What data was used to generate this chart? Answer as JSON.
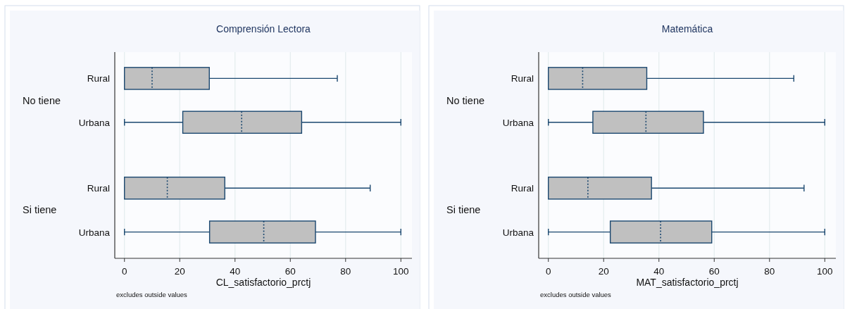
{
  "chart_data": [
    {
      "type": "box",
      "title": "Comprensión Lectora",
      "xlabel": "CL_satisfactorio_prctj",
      "annotations": [
        "No tiene",
        "Si tiene",
        "excludes outside values"
      ],
      "orientation": "horizontal",
      "categories": [
        "Rural",
        "Urbana",
        "Rural",
        "Urbana"
      ],
      "series": [
        {
          "color": "#c0c0c0",
          "boxes": [
            {
              "low": 0,
              "q1": 0,
              "median": 10,
              "q3": 30.7,
              "high": 77
            },
            {
              "low": 0,
              "q1": 21.1,
              "median": 42.4,
              "q3": 64.1,
              "high": 100
            },
            null,
            null
          ]
        },
        {
          "color": "#c0c0c0",
          "boxes": [
            null,
            null,
            {
              "low": 0,
              "q1": 0,
              "median": 15.5,
              "q3": 36.3,
              "high": 88.9
            },
            {
              "low": 0,
              "q1": 30.8,
              "median": 50.4,
              "q3": 69.1,
              "high": 100
            }
          ]
        }
      ],
      "xlim": [
        -3.5,
        104
      ],
      "xticks": [
        0,
        20,
        40,
        60,
        80,
        100
      ],
      "grid": "x"
    },
    {
      "type": "box",
      "title": "Matemática",
      "xlabel": "MAT_satisfactorio_prctj",
      "annotations": [
        "No tiene",
        "Si tiene",
        "excludes outside values"
      ],
      "orientation": "horizontal",
      "categories": [
        "Rural",
        "Urbana",
        "Rural",
        "Urbana"
      ],
      "series": [
        {
          "color": "#c0c0c0",
          "boxes": [
            {
              "low": 0,
              "q1": 0,
              "median": 12.4,
              "q3": 35.6,
              "high": 88.8
            },
            {
              "low": 0,
              "q1": 16.1,
              "median": 35.3,
              "q3": 56.1,
              "high": 100
            },
            null,
            null
          ]
        },
        {
          "color": "#c0c0c0",
          "boxes": [
            null,
            null,
            {
              "low": 0,
              "q1": 0,
              "median": 14.3,
              "q3": 37.3,
              "high": 92.5
            },
            {
              "low": 0,
              "q1": 22.4,
              "median": 40.6,
              "q3": 59.1,
              "high": 100
            }
          ]
        }
      ],
      "xlim": [
        -3.5,
        104
      ],
      "xticks": [
        0,
        20,
        40,
        60,
        80,
        100
      ],
      "grid": "x"
    }
  ]
}
